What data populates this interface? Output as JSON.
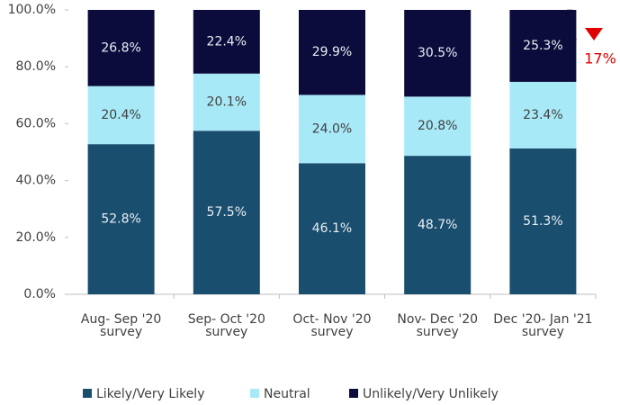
{
  "chart_data": {
    "type": "stacked_bar",
    "categories": [
      [
        "Aug- Sep '20",
        "survey"
      ],
      [
        "Sep- Oct '20",
        "survey"
      ],
      [
        "Oct- Nov '20",
        "survey"
      ],
      [
        "Nov- Dec '20",
        "survey"
      ],
      [
        "Dec '20- Jan '21",
        "survey"
      ]
    ],
    "series": [
      {
        "name": "Likely/Very Likely",
        "color": "#1a4e6e",
        "values": [
          52.8,
          57.5,
          46.1,
          48.7,
          51.3
        ],
        "value_labels": [
          "52.8%",
          "57.5%",
          "46.1%",
          "48.7%",
          "51.3%"
        ]
      },
      {
        "name": "Neutral",
        "color": "#a8e9f7",
        "values": [
          20.4,
          20.1,
          24.0,
          20.8,
          23.4
        ],
        "value_labels": [
          "20.4%",
          "20.1%",
          "24.0%",
          "20.8%",
          "23.4%"
        ]
      },
      {
        "name": "Unlikely/Very Unlikely",
        "color": "#0c0c3c",
        "values": [
          26.8,
          22.4,
          29.9,
          30.5,
          25.3
        ],
        "value_labels": [
          "26.8%",
          "22.4%",
          "29.9%",
          "30.5%",
          "25.3%"
        ]
      }
    ],
    "ylim": [
      0,
      100
    ],
    "yticks": [
      {
        "value": 0,
        "label": "0.0%"
      },
      {
        "value": 20,
        "label": "20.0%"
      },
      {
        "value": 40,
        "label": "40.0%"
      },
      {
        "value": 60,
        "label": "60.0%"
      },
      {
        "value": 80,
        "label": "80.0%"
      },
      {
        "value": 100,
        "label": "100.0%"
      }
    ],
    "annotation": {
      "text": "17%",
      "color": "#e00000"
    },
    "legend": "bottom"
  }
}
